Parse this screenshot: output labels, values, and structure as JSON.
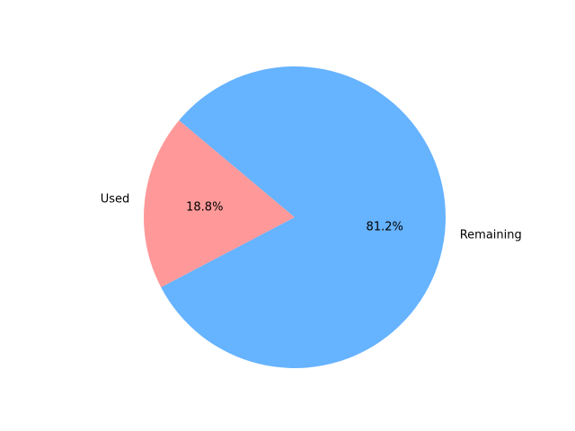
{
  "chart_data": {
    "type": "pie",
    "title": "",
    "slices": [
      {
        "label": "Used",
        "value": 18.8,
        "pct_label": "18.8%",
        "color": "#ff9999"
      },
      {
        "label": "Remaining",
        "value": 81.2,
        "pct_label": "81.2%",
        "color": "#66b3ff"
      }
    ],
    "start_angle_deg": 140,
    "direction": "counterclockwise",
    "legend": "none"
  }
}
